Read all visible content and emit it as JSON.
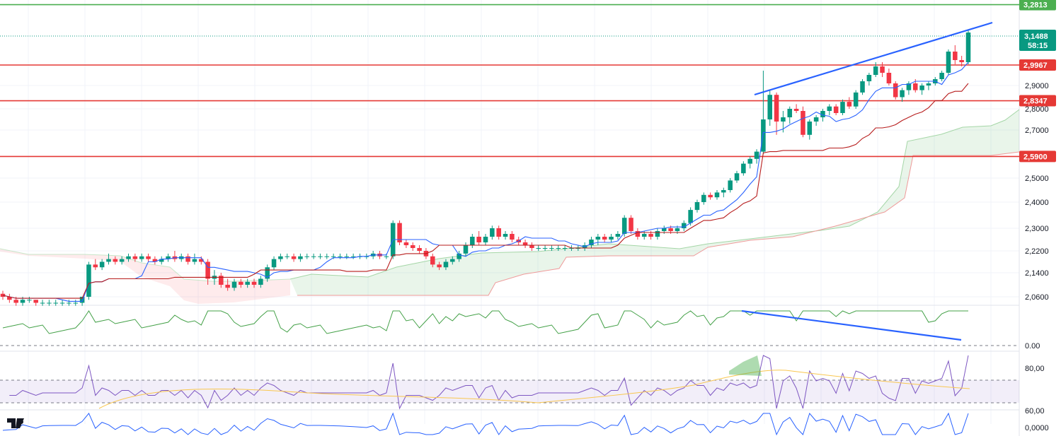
{
  "chart_data": {
    "type": "candlestick",
    "price_axis": {
      "ticks": [
        "3,2800",
        "2,9000",
        "2,8000",
        "2,7000",
        "2,5000",
        "2,4000",
        "2,3000",
        "2,2200",
        "2,1400",
        "2,0600"
      ],
      "tick_values": [
        3.28,
        2.9,
        2.8,
        2.7,
        2.5,
        2.4,
        2.3,
        2.22,
        2.14,
        2.06
      ],
      "ylim": [
        2.03,
        3.3
      ]
    },
    "levels": [
      {
        "label": "3,2813",
        "value": 3.2813,
        "color": "#4caf50"
      },
      {
        "label": "2,9967",
        "value": 2.9967,
        "color": "#e53935"
      },
      {
        "label": "2,8347",
        "value": 2.8347,
        "color": "#e53935"
      },
      {
        "label": "2,5900",
        "value": 2.59,
        "color": "#e53935"
      }
    ],
    "current_price": {
      "label": "3,1488",
      "countdown": "58:15",
      "value": 3.1488,
      "color": "#089981"
    },
    "candles_note": "approximate OHLC read from the image",
    "candles": [
      [
        2.07,
        2.08,
        2.05,
        2.06
      ],
      [
        2.06,
        2.07,
        2.04,
        2.05
      ],
      [
        2.05,
        2.06,
        2.03,
        2.04
      ],
      [
        2.04,
        2.06,
        2.03,
        2.05
      ],
      [
        2.05,
        2.06,
        2.04,
        2.05
      ],
      [
        2.05,
        2.05,
        2.03,
        2.04
      ],
      [
        2.04,
        2.05,
        2.03,
        2.04
      ],
      [
        2.04,
        2.05,
        2.03,
        2.04
      ],
      [
        2.04,
        2.05,
        2.03,
        2.04
      ],
      [
        2.04,
        2.05,
        2.03,
        2.04
      ],
      [
        2.04,
        2.05,
        2.03,
        2.04
      ],
      [
        2.04,
        2.05,
        2.03,
        2.04
      ],
      [
        2.04,
        2.06,
        2.03,
        2.06
      ],
      [
        2.06,
        2.18,
        2.05,
        2.17
      ],
      [
        2.17,
        2.19,
        2.15,
        2.16
      ],
      [
        2.16,
        2.19,
        2.15,
        2.18
      ],
      [
        2.18,
        2.21,
        2.17,
        2.19
      ],
      [
        2.19,
        2.2,
        2.17,
        2.18
      ],
      [
        2.18,
        2.2,
        2.17,
        2.19
      ],
      [
        2.19,
        2.21,
        2.18,
        2.2
      ],
      [
        2.2,
        2.21,
        2.18,
        2.19
      ],
      [
        2.19,
        2.21,
        2.18,
        2.2
      ],
      [
        2.2,
        2.21,
        2.18,
        2.19
      ],
      [
        2.19,
        2.2,
        2.17,
        2.18
      ],
      [
        2.18,
        2.2,
        2.17,
        2.19
      ],
      [
        2.19,
        2.21,
        2.18,
        2.2
      ],
      [
        2.2,
        2.22,
        2.18,
        2.19
      ],
      [
        2.19,
        2.21,
        2.18,
        2.2
      ],
      [
        2.2,
        2.21,
        2.17,
        2.18
      ],
      [
        2.18,
        2.21,
        2.17,
        2.19
      ],
      [
        2.19,
        2.2,
        2.17,
        2.18
      ],
      [
        2.18,
        2.19,
        2.1,
        2.12
      ],
      [
        2.12,
        2.15,
        2.1,
        2.13
      ],
      [
        2.13,
        2.14,
        2.09,
        2.1
      ],
      [
        2.1,
        2.12,
        2.08,
        2.09
      ],
      [
        2.09,
        2.12,
        2.08,
        2.11
      ],
      [
        2.11,
        2.12,
        2.09,
        2.1
      ],
      [
        2.1,
        2.12,
        2.09,
        2.11
      ],
      [
        2.11,
        2.12,
        2.09,
        2.1
      ],
      [
        2.1,
        2.13,
        2.09,
        2.12
      ],
      [
        2.12,
        2.17,
        2.11,
        2.16
      ],
      [
        2.16,
        2.2,
        2.15,
        2.19
      ],
      [
        2.19,
        2.21,
        2.18,
        2.2
      ],
      [
        2.2,
        2.21,
        2.19,
        2.2
      ],
      [
        2.2,
        2.21,
        2.18,
        2.19
      ],
      [
        2.19,
        2.21,
        2.18,
        2.2
      ],
      [
        2.2,
        2.21,
        2.19,
        2.2
      ],
      [
        2.2,
        2.21,
        2.19,
        2.2
      ],
      [
        2.2,
        2.21,
        2.19,
        2.2
      ],
      [
        2.2,
        2.21,
        2.19,
        2.2
      ],
      [
        2.2,
        2.21,
        2.19,
        2.2
      ],
      [
        2.2,
        2.21,
        2.19,
        2.2
      ],
      [
        2.2,
        2.21,
        2.19,
        2.2
      ],
      [
        2.2,
        2.21,
        2.19,
        2.2
      ],
      [
        2.2,
        2.21,
        2.19,
        2.2
      ],
      [
        2.2,
        2.21,
        2.19,
        2.2
      ],
      [
        2.2,
        2.22,
        2.19,
        2.21
      ],
      [
        2.21,
        2.22,
        2.19,
        2.2
      ],
      [
        2.2,
        2.21,
        2.19,
        2.2
      ],
      [
        2.2,
        2.33,
        2.19,
        2.32
      ],
      [
        2.32,
        2.33,
        2.24,
        2.25
      ],
      [
        2.25,
        2.26,
        2.23,
        2.24
      ],
      [
        2.24,
        2.25,
        2.22,
        2.23
      ],
      [
        2.23,
        2.24,
        2.21,
        2.22
      ],
      [
        2.22,
        2.23,
        2.19,
        2.2
      ],
      [
        2.2,
        2.21,
        2.16,
        2.17
      ],
      [
        2.17,
        2.18,
        2.15,
        2.16
      ],
      [
        2.16,
        2.19,
        2.15,
        2.18
      ],
      [
        2.18,
        2.2,
        2.17,
        2.19
      ],
      [
        2.19,
        2.22,
        2.18,
        2.21
      ],
      [
        2.21,
        2.25,
        2.2,
        2.24
      ],
      [
        2.24,
        2.28,
        2.23,
        2.27
      ],
      [
        2.27,
        2.29,
        2.24,
        2.25
      ],
      [
        2.25,
        2.28,
        2.24,
        2.27
      ],
      [
        2.27,
        2.31,
        2.26,
        2.3
      ],
      [
        2.3,
        2.31,
        2.26,
        2.27
      ],
      [
        2.27,
        2.29,
        2.26,
        2.28
      ],
      [
        2.28,
        2.29,
        2.25,
        2.26
      ],
      [
        2.26,
        2.27,
        2.24,
        2.25
      ],
      [
        2.25,
        2.26,
        2.23,
        2.24
      ],
      [
        2.24,
        2.25,
        2.22,
        2.23
      ],
      [
        2.23,
        2.24,
        2.22,
        2.23
      ],
      [
        2.23,
        2.24,
        2.22,
        2.23
      ],
      [
        2.23,
        2.24,
        2.22,
        2.23
      ],
      [
        2.23,
        2.24,
        2.22,
        2.23
      ],
      [
        2.23,
        2.24,
        2.22,
        2.23
      ],
      [
        2.23,
        2.24,
        2.22,
        2.23
      ],
      [
        2.23,
        2.24,
        2.22,
        2.23
      ],
      [
        2.23,
        2.25,
        2.22,
        2.24
      ],
      [
        2.24,
        2.27,
        2.23,
        2.26
      ],
      [
        2.26,
        2.28,
        2.24,
        2.27
      ],
      [
        2.27,
        2.28,
        2.25,
        2.26
      ],
      [
        2.26,
        2.28,
        2.25,
        2.27
      ],
      [
        2.27,
        2.29,
        2.26,
        2.28
      ],
      [
        2.28,
        2.35,
        2.27,
        2.34
      ],
      [
        2.34,
        2.35,
        2.28,
        2.29
      ],
      [
        2.29,
        2.3,
        2.26,
        2.27
      ],
      [
        2.27,
        2.29,
        2.26,
        2.28
      ],
      [
        2.28,
        2.29,
        2.26,
        2.27
      ],
      [
        2.27,
        2.3,
        2.26,
        2.29
      ],
      [
        2.29,
        2.31,
        2.28,
        2.3
      ],
      [
        2.3,
        2.31,
        2.28,
        2.29
      ],
      [
        2.29,
        2.31,
        2.28,
        2.3
      ],
      [
        2.3,
        2.33,
        2.29,
        2.32
      ],
      [
        2.32,
        2.38,
        2.31,
        2.37
      ],
      [
        2.37,
        2.41,
        2.36,
        2.4
      ],
      [
        2.4,
        2.44,
        2.39,
        2.43
      ],
      [
        2.43,
        2.44,
        2.41,
        2.42
      ],
      [
        2.42,
        2.45,
        2.41,
        2.44
      ],
      [
        2.44,
        2.46,
        2.42,
        2.45
      ],
      [
        2.45,
        2.5,
        2.44,
        2.49
      ],
      [
        2.49,
        2.53,
        2.48,
        2.52
      ],
      [
        2.52,
        2.57,
        2.51,
        2.56
      ],
      [
        2.56,
        2.59,
        2.54,
        2.58
      ],
      [
        2.58,
        2.62,
        2.56,
        2.61
      ],
      [
        2.61,
        2.97,
        2.6,
        2.75
      ],
      [
        2.75,
        2.88,
        2.72,
        2.86
      ],
      [
        2.86,
        2.87,
        2.68,
        2.74
      ],
      [
        2.74,
        2.79,
        2.69,
        2.76
      ],
      [
        2.76,
        2.81,
        2.73,
        2.8
      ],
      [
        2.8,
        2.82,
        2.78,
        2.79
      ],
      [
        2.79,
        2.81,
        2.67,
        2.68
      ],
      [
        2.68,
        2.75,
        2.66,
        2.74
      ],
      [
        2.74,
        2.77,
        2.72,
        2.76
      ],
      [
        2.76,
        2.8,
        2.74,
        2.79
      ],
      [
        2.79,
        2.82,
        2.77,
        2.81
      ],
      [
        2.81,
        2.82,
        2.77,
        2.78
      ],
      [
        2.78,
        2.84,
        2.77,
        2.83
      ],
      [
        2.83,
        2.85,
        2.8,
        2.81
      ],
      [
        2.81,
        2.88,
        2.8,
        2.87
      ],
      [
        2.87,
        2.93,
        2.86,
        2.92
      ],
      [
        2.92,
        2.96,
        2.9,
        2.95
      ],
      [
        2.95,
        3.01,
        2.94,
        2.99
      ],
      [
        2.99,
        3.01,
        2.94,
        2.96
      ],
      [
        2.96,
        2.98,
        2.9,
        2.91
      ],
      [
        2.91,
        2.92,
        2.84,
        2.85
      ],
      [
        2.85,
        2.89,
        2.83,
        2.88
      ],
      [
        2.88,
        2.92,
        2.86,
        2.91
      ],
      [
        2.91,
        2.93,
        2.87,
        2.88
      ],
      [
        2.88,
        2.91,
        2.86,
        2.9
      ],
      [
        2.9,
        2.92,
        2.88,
        2.91
      ],
      [
        2.91,
        2.94,
        2.9,
        2.93
      ],
      [
        2.93,
        2.97,
        2.92,
        2.96
      ],
      [
        2.96,
        3.07,
        2.95,
        3.06
      ],
      [
        3.06,
        3.09,
        3.0,
        3.02
      ],
      [
        3.02,
        3.04,
        2.99,
        3.01
      ],
      [
        3.01,
        3.16,
        3.0,
        3.15
      ]
    ],
    "ichimoku_note": "approximate indicator lines read from the image"
  }
}
